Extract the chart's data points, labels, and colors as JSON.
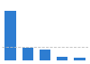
{
  "values": [
    59,
    15,
    13,
    5,
    4
  ],
  "bar_color": "#2e7dd1",
  "background_color": "#ffffff",
  "ylim": [
    0,
    68
  ],
  "dashed_line_y": 16,
  "bar_width": 0.65,
  "n_bars": 5
}
